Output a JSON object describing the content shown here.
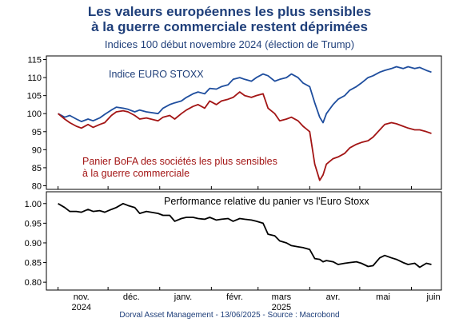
{
  "title_line1": "Les valeurs européennes les plus sensibles",
  "title_line2": "à la guerre commerciale restent déprimées",
  "subtitle": "Indices 100 début novembre 2024 (élection de Trump)",
  "footer": "Dorval Asset Management      - 13/06/2025   -   Source : Macrobond",
  "chart_data": [
    {
      "type": "line",
      "ylim": [
        79,
        116
      ],
      "yticks": [
        80,
        85,
        90,
        95,
        100,
        105,
        110,
        115
      ],
      "grid": false,
      "series": [
        {
          "name": "Indice EURO STOXX",
          "color": "#1f4e9e",
          "label_color": "#1f3f7a",
          "x": [
            "2024-11-01",
            "2024-11-05",
            "2024-11-08",
            "2024-11-12",
            "2024-11-15",
            "2024-11-19",
            "2024-11-22",
            "2024-11-26",
            "2024-11-29",
            "2024-12-03",
            "2024-12-06",
            "2024-12-10",
            "2024-12-13",
            "2024-12-17",
            "2024-12-20",
            "2024-12-24",
            "2024-12-31",
            "2025-01-03",
            "2025-01-07",
            "2025-01-10",
            "2025-01-14",
            "2025-01-17",
            "2025-01-21",
            "2025-01-24",
            "2025-01-28",
            "2025-01-31",
            "2025-02-04",
            "2025-02-07",
            "2025-02-11",
            "2025-02-14",
            "2025-02-18",
            "2025-02-21",
            "2025-02-25",
            "2025-02-28",
            "2025-03-04",
            "2025-03-07",
            "2025-03-11",
            "2025-03-14",
            "2025-03-18",
            "2025-03-21",
            "2025-03-25",
            "2025-03-28",
            "2025-04-01",
            "2025-04-04",
            "2025-04-07",
            "2025-04-09",
            "2025-04-11",
            "2025-04-15",
            "2025-04-18",
            "2025-04-22",
            "2025-04-25",
            "2025-04-29",
            "2025-05-02",
            "2025-05-06",
            "2025-05-09",
            "2025-05-13",
            "2025-05-16",
            "2025-05-20",
            "2025-05-23",
            "2025-05-27",
            "2025-05-30",
            "2025-06-03",
            "2025-06-06",
            "2025-06-10",
            "2025-06-13"
          ],
          "values": [
            100,
            99,
            99.5,
            98.5,
            97.8,
            98.5,
            98,
            98.8,
            99.8,
            101,
            101.8,
            101.5,
            101.2,
            100.5,
            101,
            100.5,
            100,
            101.5,
            102.5,
            103,
            103.5,
            104.5,
            105.5,
            106,
            105.5,
            107,
            106.8,
            107.5,
            108,
            109.5,
            110,
            109.5,
            109,
            110,
            111,
            110.5,
            109,
            109.5,
            110,
            111,
            110,
            108.5,
            107.5,
            103,
            99,
            97.5,
            100,
            102.5,
            104,
            105,
            106.5,
            107.5,
            108.5,
            110,
            110.5,
            111.5,
            112,
            112.5,
            113,
            112.5,
            113,
            112.5,
            112.8,
            112,
            111.5
          ]
        },
        {
          "name": "Panier BoFA des sociétés les plus sensibles à la guerre commerciale",
          "label_lines": [
            "Panier BoFA des sociétés les plus sensibles",
            "à la guerre commerciale"
          ],
          "color": "#a31515",
          "label_color": "#a31515",
          "x": [
            "2024-11-01",
            "2024-11-05",
            "2024-11-08",
            "2024-11-12",
            "2024-11-15",
            "2024-11-19",
            "2024-11-22",
            "2024-11-26",
            "2024-11-29",
            "2024-12-03",
            "2024-12-06",
            "2024-12-10",
            "2024-12-13",
            "2024-12-17",
            "2024-12-20",
            "2024-12-24",
            "2024-12-31",
            "2025-01-03",
            "2025-01-07",
            "2025-01-10",
            "2025-01-14",
            "2025-01-17",
            "2025-01-21",
            "2025-01-24",
            "2025-01-28",
            "2025-01-31",
            "2025-02-04",
            "2025-02-07",
            "2025-02-11",
            "2025-02-14",
            "2025-02-18",
            "2025-02-21",
            "2025-02-25",
            "2025-02-28",
            "2025-03-04",
            "2025-03-07",
            "2025-03-11",
            "2025-03-14",
            "2025-03-18",
            "2025-03-21",
            "2025-03-25",
            "2025-03-28",
            "2025-04-01",
            "2025-04-04",
            "2025-04-07",
            "2025-04-09",
            "2025-04-11",
            "2025-04-15",
            "2025-04-18",
            "2025-04-22",
            "2025-04-25",
            "2025-04-29",
            "2025-05-02",
            "2025-05-06",
            "2025-05-09",
            "2025-05-13",
            "2025-05-16",
            "2025-05-20",
            "2025-05-23",
            "2025-05-27",
            "2025-05-30",
            "2025-06-03",
            "2025-06-06",
            "2025-06-10",
            "2025-06-13"
          ],
          "values": [
            100,
            98.5,
            97.5,
            96.5,
            96,
            97,
            96.2,
            97,
            97.5,
            99.5,
            100.5,
            100.8,
            100.5,
            99.5,
            98.5,
            98.8,
            98,
            99,
            99.5,
            98.5,
            100,
            101,
            102,
            102.5,
            101.5,
            103.5,
            102.5,
            103.5,
            104,
            104.5,
            106,
            105,
            104.5,
            105,
            105.5,
            101.5,
            100,
            98,
            98.5,
            99,
            98,
            96.5,
            95,
            86,
            81.5,
            83,
            86,
            87.5,
            88,
            89,
            90.5,
            91.5,
            92,
            92.5,
            93.5,
            95.5,
            97,
            97.5,
            97.2,
            96.5,
            96,
            95.5,
            95.5,
            95,
            94.5
          ]
        }
      ],
      "annotations": []
    },
    {
      "type": "line",
      "ylim": [
        0.78,
        1.03
      ],
      "yticks": [
        0.8,
        0.85,
        0.9,
        0.95,
        1.0
      ],
      "ytick_labels": [
        "0.80",
        "0.85",
        "0.90",
        "0.95",
        "1.00"
      ],
      "grid": false,
      "series": [
        {
          "name": "Performance relative du panier vs l'Euro Stoxx",
          "color": "#000000",
          "label_color": "#000000",
          "x": [
            "2024-11-01",
            "2024-11-05",
            "2024-11-08",
            "2024-11-12",
            "2024-11-15",
            "2024-11-19",
            "2024-11-22",
            "2024-11-26",
            "2024-11-29",
            "2024-12-03",
            "2024-12-06",
            "2024-12-10",
            "2024-12-13",
            "2024-12-17",
            "2024-12-20",
            "2024-12-24",
            "2024-12-31",
            "2025-01-03",
            "2025-01-07",
            "2025-01-10",
            "2025-01-14",
            "2025-01-17",
            "2025-01-21",
            "2025-01-24",
            "2025-01-28",
            "2025-01-31",
            "2025-02-04",
            "2025-02-07",
            "2025-02-11",
            "2025-02-14",
            "2025-02-18",
            "2025-02-21",
            "2025-02-25",
            "2025-02-28",
            "2025-03-04",
            "2025-03-07",
            "2025-03-11",
            "2025-03-14",
            "2025-03-18",
            "2025-03-21",
            "2025-03-25",
            "2025-03-28",
            "2025-04-01",
            "2025-04-04",
            "2025-04-07",
            "2025-04-09",
            "2025-04-11",
            "2025-04-15",
            "2025-04-18",
            "2025-04-22",
            "2025-04-25",
            "2025-04-29",
            "2025-05-02",
            "2025-05-06",
            "2025-05-09",
            "2025-05-13",
            "2025-05-16",
            "2025-05-20",
            "2025-05-23",
            "2025-05-27",
            "2025-05-30",
            "2025-06-03",
            "2025-06-06",
            "2025-06-10",
            "2025-06-13"
          ],
          "values": [
            1.0,
            0.99,
            0.98,
            0.98,
            0.978,
            0.985,
            0.98,
            0.982,
            0.978,
            0.985,
            0.99,
            1.0,
            0.995,
            0.99,
            0.975,
            0.98,
            0.975,
            0.97,
            0.97,
            0.955,
            0.962,
            0.965,
            0.965,
            0.962,
            0.96,
            0.965,
            0.958,
            0.96,
            0.962,
            0.955,
            0.962,
            0.96,
            0.958,
            0.955,
            0.95,
            0.922,
            0.918,
            0.905,
            0.9,
            0.893,
            0.89,
            0.888,
            0.883,
            0.86,
            0.858,
            0.852,
            0.855,
            0.852,
            0.845,
            0.848,
            0.85,
            0.852,
            0.848,
            0.84,
            0.842,
            0.862,
            0.868,
            0.862,
            0.858,
            0.85,
            0.845,
            0.848,
            0.838,
            0.848,
            0.845
          ]
        }
      ],
      "annotations": []
    }
  ],
  "x_axis": {
    "month_ticks": [
      "2024-11-01",
      "2024-12-01",
      "2025-01-01",
      "2025-02-01",
      "2025-03-01",
      "2025-04-01",
      "2025-05-01",
      "2025-06-01"
    ],
    "month_labels": [
      "nov.",
      "déc.",
      "janv.",
      "févr.",
      "mars",
      "avr.",
      "mai",
      "juin"
    ],
    "year_labels": [
      {
        "text": "2024",
        "at": "2024-11-01"
      },
      {
        "text": "2025",
        "at": "2025-03-01"
      }
    ],
    "start": "2024-10-25",
    "end": "2025-06-19"
  }
}
